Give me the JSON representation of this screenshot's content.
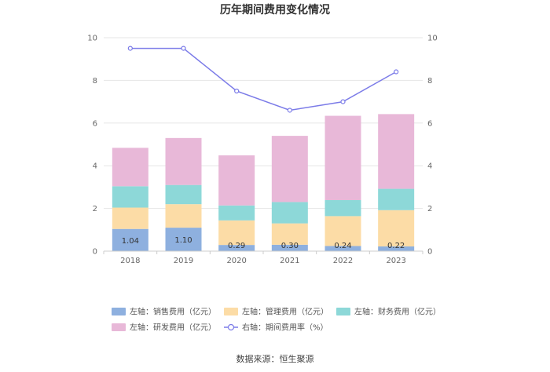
{
  "chart_data": {
    "type": "bar",
    "title": "历年期间费用变化情况",
    "categories": [
      "2018",
      "2019",
      "2020",
      "2021",
      "2022",
      "2023"
    ],
    "stacked": true,
    "ylim_left": [
      0,
      10
    ],
    "ylim_right": [
      0,
      10
    ],
    "yticks_left": [
      "0",
      "2",
      "4",
      "6",
      "8",
      "10"
    ],
    "yticks_right": [
      "0",
      "2",
      "4",
      "6",
      "8",
      "10"
    ],
    "grid": true,
    "legend_position": "bottom",
    "series": [
      {
        "name": "左轴：销售费用（亿元）",
        "type": "bar",
        "axis": "left",
        "color": "#8eb0df",
        "values": [
          1.04,
          1.1,
          0.29,
          0.3,
          0.24,
          0.22
        ],
        "labels": [
          "1.04",
          "1.10",
          "0.29",
          "0.30",
          "0.24",
          "0.22"
        ]
      },
      {
        "name": "左轴：管理费用（亿元）",
        "type": "bar",
        "axis": "left",
        "color": "#fcdca6",
        "values": [
          1.0,
          1.1,
          1.15,
          1.0,
          1.4,
          1.7
        ]
      },
      {
        "name": "左轴：财务费用（亿元）",
        "type": "bar",
        "axis": "left",
        "color": "#8dd8d8",
        "values": [
          1.0,
          0.9,
          0.7,
          1.0,
          0.75,
          1.0
        ]
      },
      {
        "name": "左轴：研发费用（亿元）",
        "type": "bar",
        "axis": "left",
        "color": "#e8b8d8",
        "values": [
          1.8,
          2.2,
          2.35,
          3.1,
          3.95,
          3.5
        ]
      },
      {
        "name": "右轴：期间费用率（%）",
        "type": "line",
        "axis": "right",
        "color": "#7b7be8",
        "values": [
          9.5,
          9.5,
          7.5,
          6.6,
          7.0,
          8.4
        ]
      }
    ],
    "source": "数据来源：恒生聚源"
  }
}
